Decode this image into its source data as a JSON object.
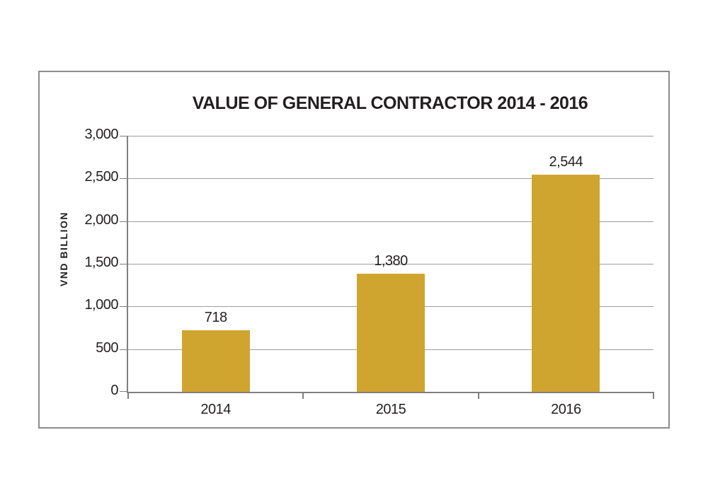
{
  "chart_data": {
    "type": "bar",
    "title": "VALUE OF GENERAL CONTRACTOR 2014 - 2016",
    "ylabel": "VND BILLION",
    "xlabel": "",
    "categories": [
      "2014",
      "2015",
      "2016"
    ],
    "values": [
      718,
      1380,
      2544
    ],
    "value_labels": [
      "718",
      "1,380",
      "2,544"
    ],
    "ylim": [
      0,
      3000
    ],
    "yticks": [
      0,
      500,
      1000,
      1500,
      2000,
      2500,
      3000
    ],
    "ytick_labels": [
      "0",
      "500",
      "1,000",
      "1,500",
      "2,000",
      "2,500",
      "3,000"
    ],
    "grid": true,
    "legend": false,
    "colors": {
      "bar": "#d0a52f",
      "gridline": "#9d9d9d",
      "axis": "#7f7f7f",
      "frame_border": "#8c8c8c",
      "text": "#231f20",
      "background": "#ffffff"
    }
  }
}
